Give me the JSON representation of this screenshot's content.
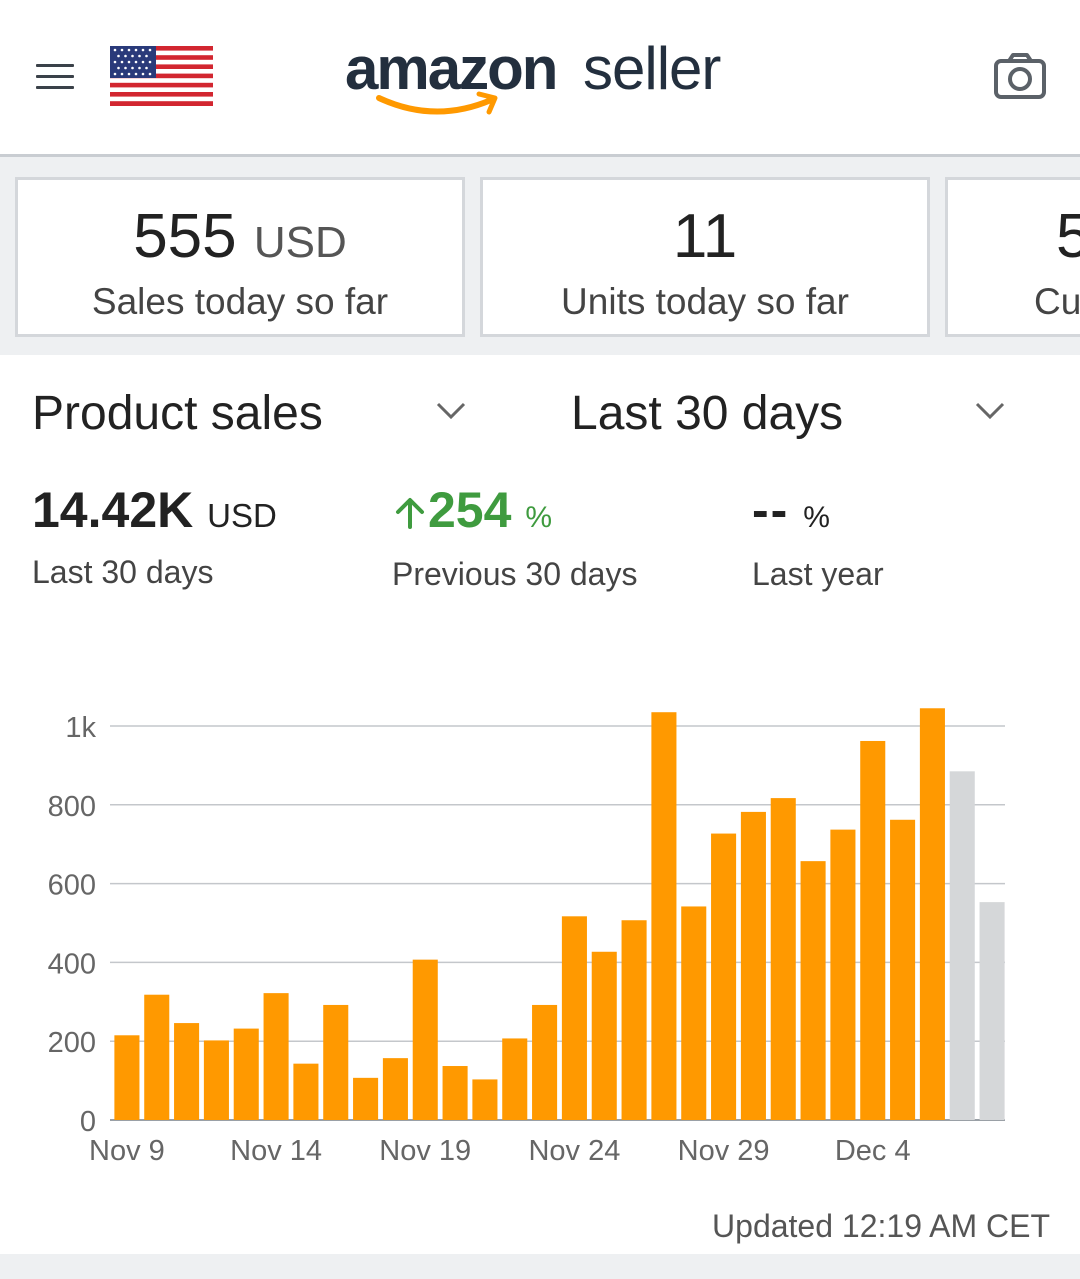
{
  "header": {
    "brand": "amazon",
    "brand_suffix": "seller",
    "menu_icon": "hamburger-menu-icon",
    "flag_icon": "us-flag-icon",
    "camera_icon": "camera-icon"
  },
  "kpis": [
    {
      "value": "555",
      "unit": "USD",
      "label": "Sales today so far"
    },
    {
      "value": "11",
      "unit": "",
      "label": "Units today so far"
    },
    {
      "value": "5",
      "unit": "",
      "label": "Cu"
    }
  ],
  "selectors": {
    "metric": "Product sales",
    "range": "Last 30 days"
  },
  "summary": {
    "total_value": "14.42K",
    "total_unit": "USD",
    "total_label": "Last 30 days",
    "change_value": "254",
    "change_unit": "%",
    "change_label": "Previous 30 days",
    "yoy_value": "--",
    "yoy_unit": "%",
    "yoy_label": "Last year"
  },
  "colors": {
    "bar": "#ff9900",
    "bar_pending": "#d5d7d9",
    "positive": "#3f9b3f",
    "grid": "#c4c7cb"
  },
  "chart_data": {
    "type": "bar",
    "ylim": [
      0,
      1000
    ],
    "yticks": [
      {
        "value": 0,
        "label": "0"
      },
      {
        "value": 200,
        "label": "200"
      },
      {
        "value": 400,
        "label": "400"
      },
      {
        "value": 600,
        "label": "600"
      },
      {
        "value": 800,
        "label": "800"
      },
      {
        "value": 1000,
        "label": "1k"
      }
    ],
    "xtick_labels": [
      {
        "index": 0,
        "label": "Nov 9"
      },
      {
        "index": 5,
        "label": "Nov 14"
      },
      {
        "index": 10,
        "label": "Nov 19"
      },
      {
        "index": 15,
        "label": "Nov 24"
      },
      {
        "index": 20,
        "label": "Nov 29"
      },
      {
        "index": 25,
        "label": "Dec 4"
      }
    ],
    "values": [
      215,
      318,
      246,
      202,
      232,
      322,
      143,
      292,
      107,
      157,
      407,
      137,
      103,
      207,
      292,
      517,
      427,
      507,
      1035,
      542,
      727,
      782,
      817,
      657,
      737,
      962,
      762,
      1045
    ],
    "pending_values": [
      885,
      553
    ]
  },
  "footer": {
    "updated": "Updated 12:19 AM CET"
  }
}
